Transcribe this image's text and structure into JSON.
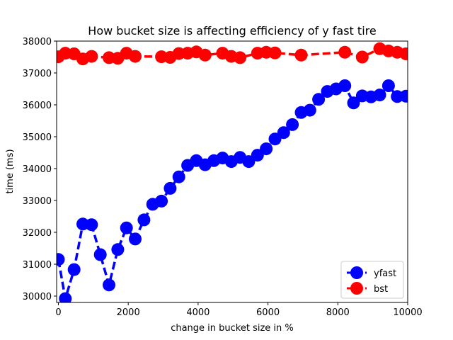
{
  "chart_data": {
    "type": "line",
    "title": "How bucket size is affecting efficiency of y fast tire",
    "xlabel": "change in bucket size in %",
    "ylabel": "time (ms)",
    "xlim": [
      -50,
      10000
    ],
    "ylim": [
      29800,
      38000
    ],
    "xticks": [
      0,
      2000,
      4000,
      6000,
      8000,
      10000
    ],
    "yticks": [
      30000,
      31000,
      32000,
      33000,
      34000,
      35000,
      36000,
      37000,
      38000
    ],
    "grid": false,
    "legend_position": "lower-right",
    "series": [
      {
        "name": "yfast",
        "color": "#0000ff",
        "linestyle": "dashed",
        "marker": "circle",
        "x": [
          0,
          200,
          450,
          700,
          950,
          1200,
          1450,
          1700,
          1950,
          2200,
          2450,
          2700,
          2950,
          3200,
          3450,
          3700,
          3950,
          4200,
          4450,
          4700,
          4950,
          5200,
          5450,
          5700,
          5950,
          6200,
          6450,
          6700,
          6950,
          7200,
          7450,
          7700,
          7950,
          8200,
          8450,
          8700,
          8950,
          9200,
          9450,
          9700,
          9950
        ],
        "y": [
          31150,
          29920,
          30830,
          32260,
          32240,
          31300,
          30350,
          31460,
          32140,
          31790,
          32390,
          32880,
          32980,
          33380,
          33740,
          34100,
          34250,
          34120,
          34250,
          34330,
          34220,
          34350,
          34220,
          34420,
          34620,
          34930,
          35130,
          35380,
          35760,
          35830,
          36170,
          36420,
          36500,
          36600,
          36060,
          36280,
          36250,
          36310,
          36600,
          36260,
          36270
        ]
      },
      {
        "name": "bst",
        "color": "#ff0000",
        "linestyle": "dashed",
        "marker": "circle",
        "x": [
          0,
          200,
          450,
          700,
          950,
          1450,
          1700,
          1950,
          2200,
          2950,
          3200,
          3450,
          3700,
          3950,
          4200,
          4700,
          4950,
          5200,
          5700,
          5950,
          6200,
          6950,
          8200,
          8700,
          9200,
          9450,
          9700,
          9950
        ],
        "y": [
          37510,
          37620,
          37600,
          37440,
          37520,
          37480,
          37460,
          37620,
          37520,
          37510,
          37490,
          37610,
          37620,
          37660,
          37560,
          37620,
          37520,
          37480,
          37620,
          37650,
          37630,
          37560,
          37650,
          37500,
          37760,
          37690,
          37650,
          37600
        ]
      }
    ]
  }
}
